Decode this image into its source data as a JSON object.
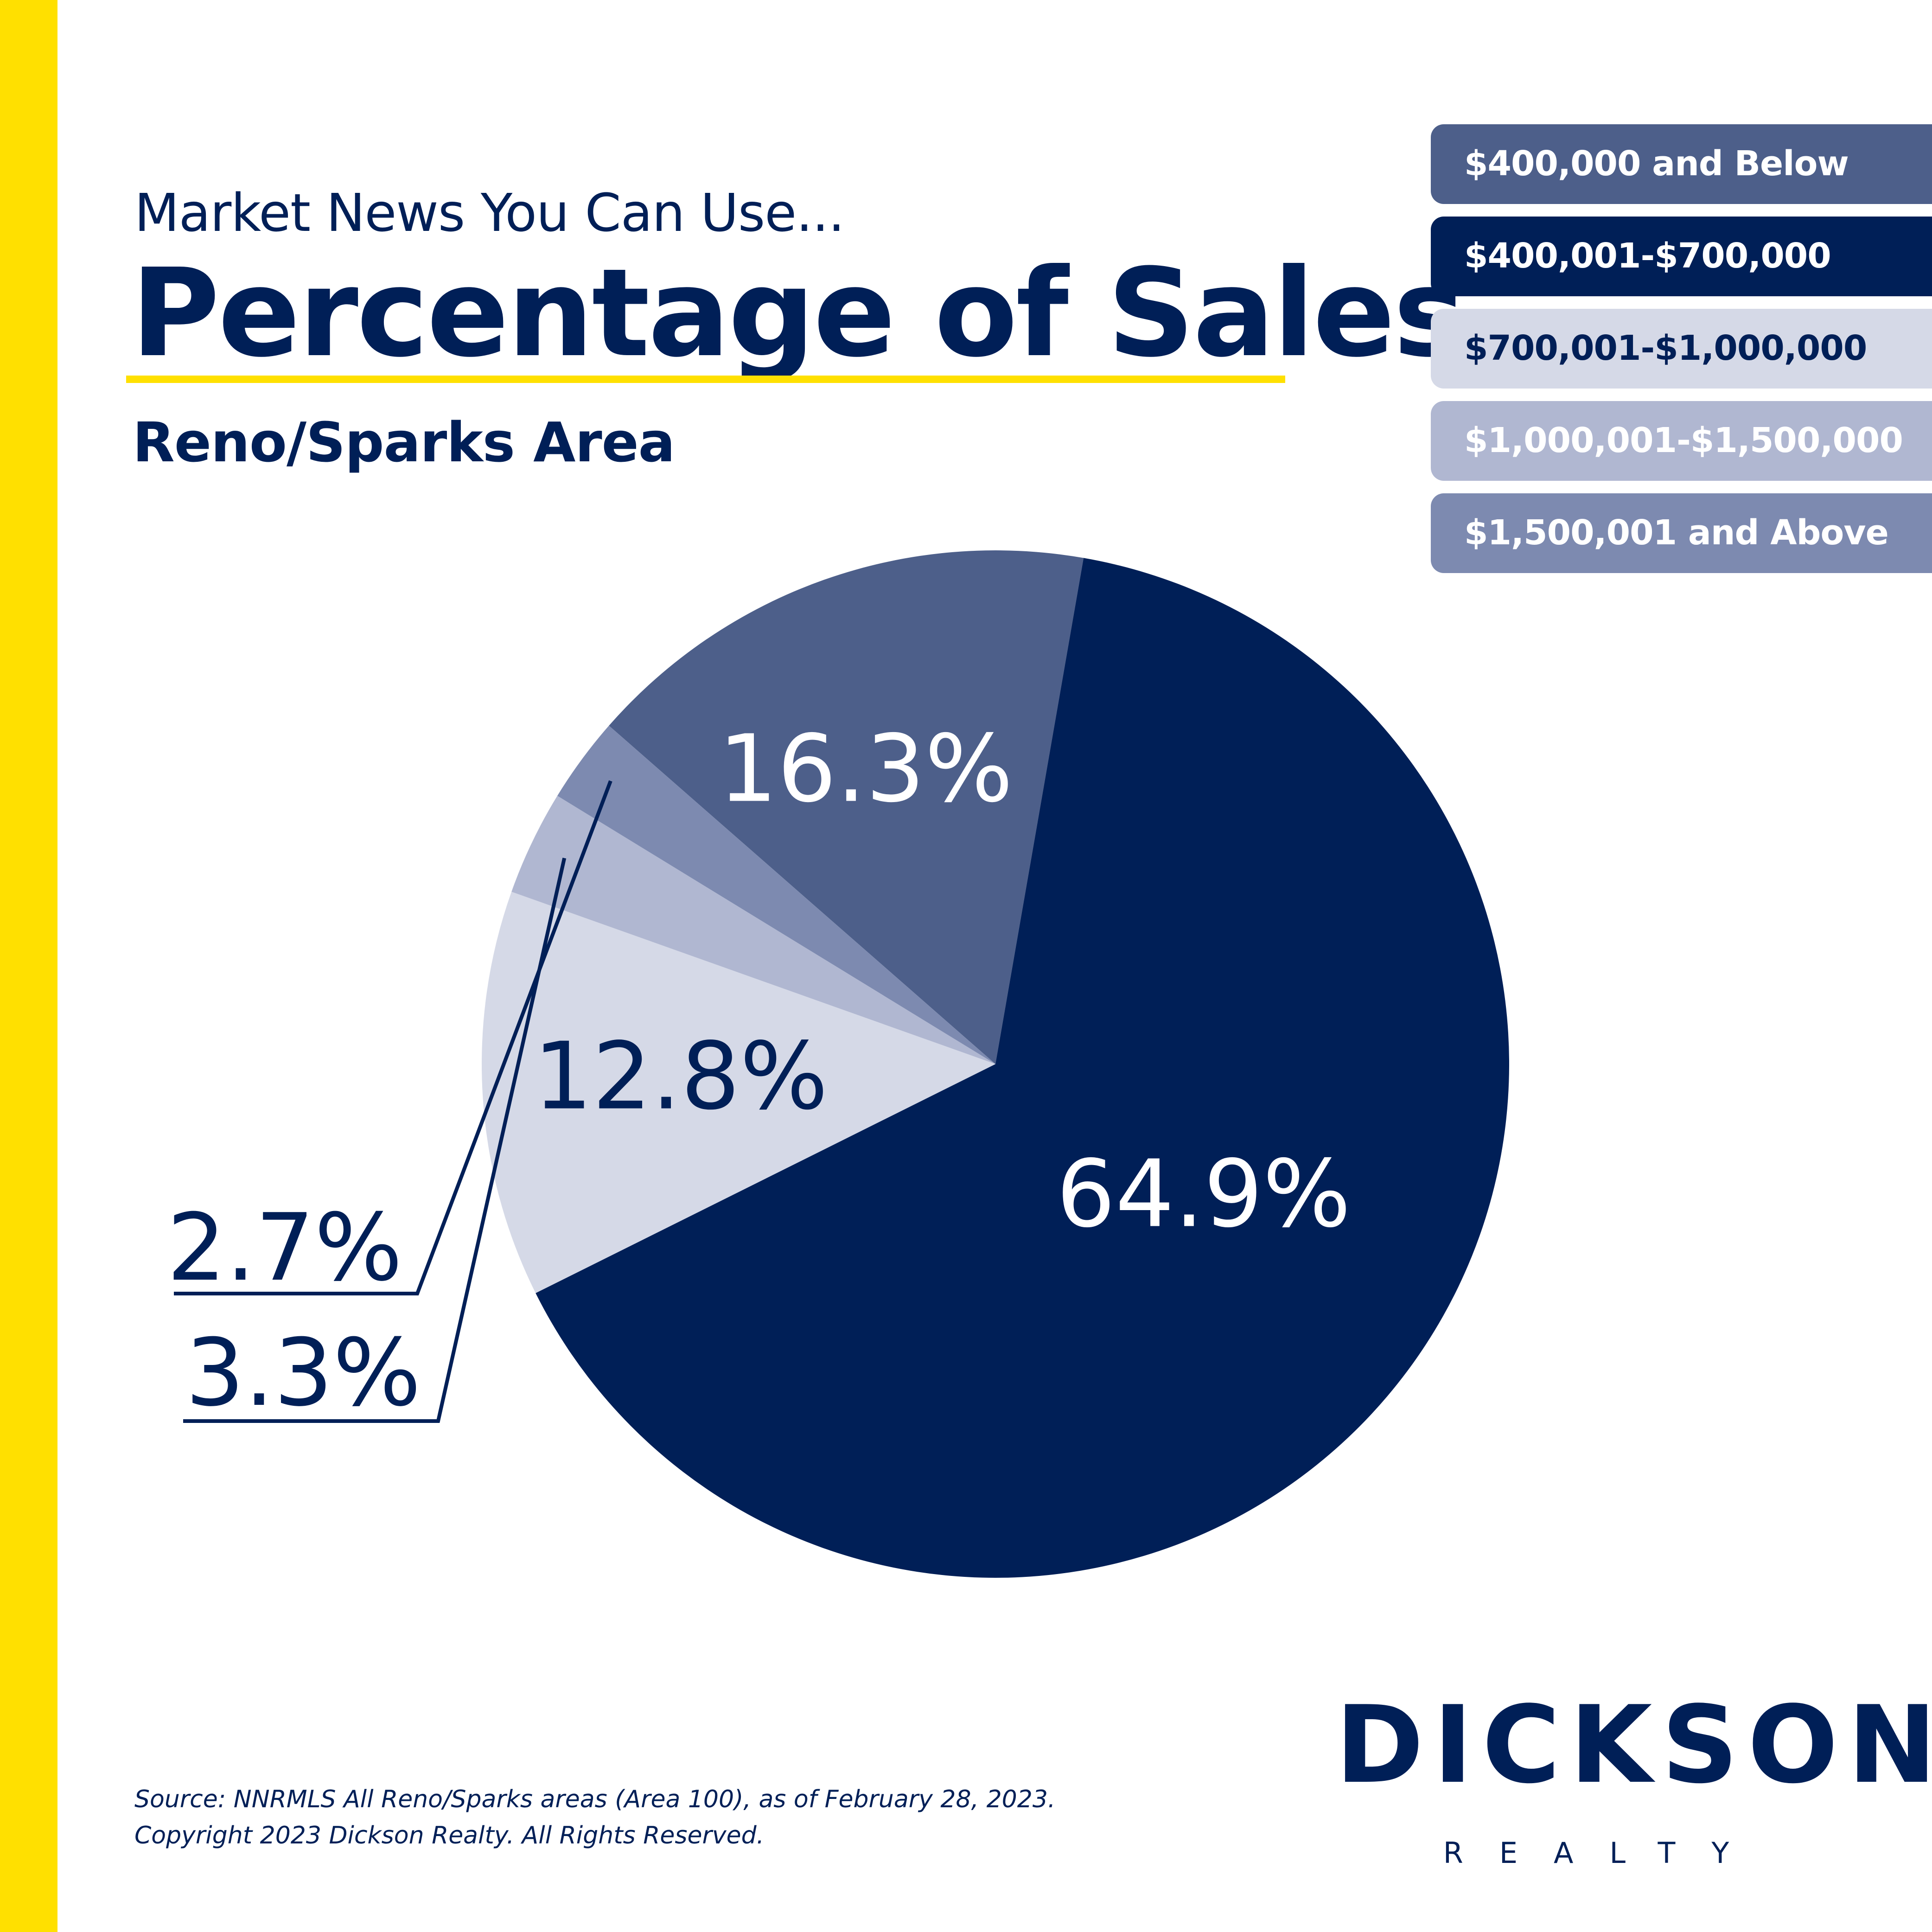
{
  "header": {
    "kicker": "Market News You Can Use...",
    "title": "Percentage of Sales",
    "subtitle": "Reno/Sparks Area"
  },
  "chart_data": {
    "type": "pie",
    "title": "Percentage of Sales",
    "categories": [
      "$400,000 and Below",
      "$400,001-$700,000",
      "$700,001-$1,000,000",
      "$1,000,001-$1,500,000",
      "$1,500,001 and Above"
    ],
    "values": [
      16.3,
      64.9,
      12.8,
      3.3,
      2.7
    ],
    "data_labels": [
      "16.3%",
      "64.9%",
      "12.8%",
      "3.3%",
      "2.7%"
    ],
    "colors": [
      "#4d5f8a",
      "#001f57",
      "#d5d9e7",
      "#b0b7d1",
      "#7d8ab0"
    ],
    "legend_placement": "top-right"
  },
  "legend": {
    "text_colors": [
      "#ffffff",
      "#ffffff",
      "#001f57",
      "#ffffff",
      "#ffffff"
    ]
  },
  "footer": {
    "source_line1": "Source: NNRMLS All Reno/Sparks areas (Area 100), as of February 28, 2023.",
    "source_line2": "Copyright 2023 Dickson Realty. All Rights Reserved."
  },
  "logo": {
    "name": "DICKSON",
    "sub": "REALTY"
  }
}
